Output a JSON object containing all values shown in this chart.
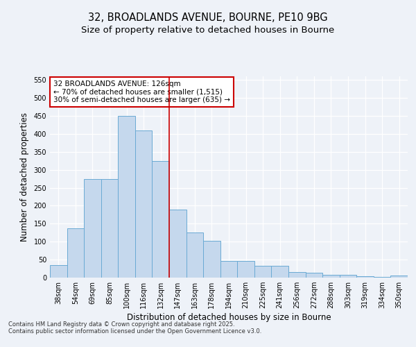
{
  "title_line1": "32, BROADLANDS AVENUE, BOURNE, PE10 9BG",
  "title_line2": "Size of property relative to detached houses in Bourne",
  "xlabel": "Distribution of detached houses by size in Bourne",
  "ylabel": "Number of detached properties",
  "categories": [
    "38sqm",
    "54sqm",
    "69sqm",
    "85sqm",
    "100sqm",
    "116sqm",
    "132sqm",
    "147sqm",
    "163sqm",
    "178sqm",
    "194sqm",
    "210sqm",
    "225sqm",
    "241sqm",
    "256sqm",
    "272sqm",
    "288sqm",
    "303sqm",
    "319sqm",
    "334sqm",
    "350sqm"
  ],
  "values": [
    35,
    137,
    275,
    275,
    450,
    410,
    325,
    190,
    125,
    103,
    47,
    46,
    32,
    32,
    16,
    14,
    8,
    8,
    4,
    2,
    5
  ],
  "bar_color": "#c5d8ed",
  "bar_edge_color": "#6aaad4",
  "vline_x": 6.5,
  "vline_color": "#cc0000",
  "annotation_text": "32 BROADLANDS AVENUE: 126sqm\n← 70% of detached houses are smaller (1,515)\n30% of semi-detached houses are larger (635) →",
  "annotation_box_color": "#ffffff",
  "annotation_box_edge": "#cc0000",
  "ylim": [
    0,
    560
  ],
  "yticks": [
    0,
    50,
    100,
    150,
    200,
    250,
    300,
    350,
    400,
    450,
    500,
    550
  ],
  "background_color": "#eef2f8",
  "footer": "Contains HM Land Registry data © Crown copyright and database right 2025.\nContains public sector information licensed under the Open Government Licence v3.0.",
  "title_fontsize": 10.5,
  "subtitle_fontsize": 9.5,
  "axis_label_fontsize": 8.5,
  "tick_fontsize": 7,
  "annotation_fontsize": 7.5,
  "footer_fontsize": 6
}
